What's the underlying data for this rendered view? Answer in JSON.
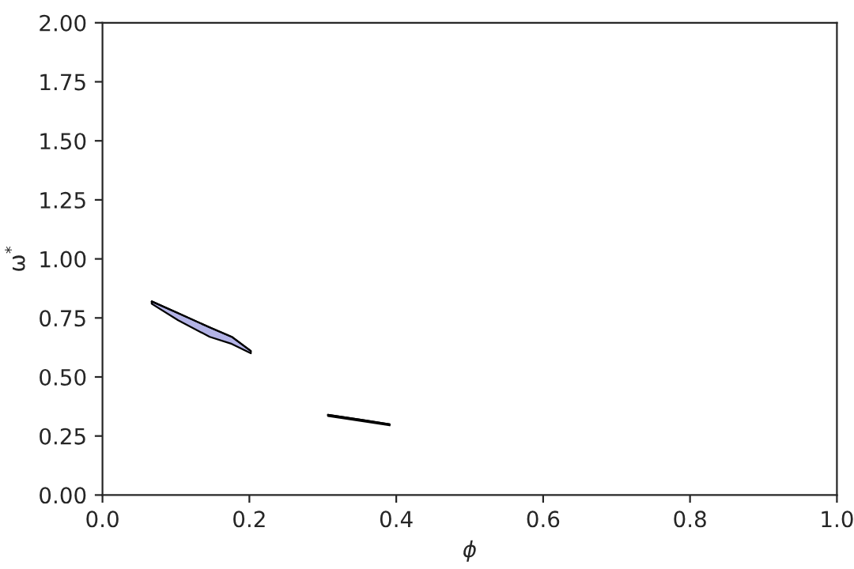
{
  "chart_data": {
    "type": "line",
    "xlabel": "ϕ",
    "ylabel": "ω$^{*}$",
    "xlim": [
      0,
      1
    ],
    "ylim": [
      0,
      2
    ],
    "xticks": [
      {
        "value": 0,
        "label": "0.0"
      },
      {
        "value": 0.2,
        "label": "0.2"
      },
      {
        "value": 0.4,
        "label": "0.4"
      },
      {
        "value": 0.6,
        "label": "0.6"
      },
      {
        "value": 0.8,
        "label": "0.8"
      },
      {
        "value": 1,
        "label": "1.0"
      }
    ],
    "yticks": [
      {
        "value": 0,
        "label": "0.00"
      },
      {
        "value": 0.25,
        "label": "0.25"
      },
      {
        "value": 0.5,
        "label": "0.50"
      },
      {
        "value": 0.75,
        "label": "0.75"
      },
      {
        "value": 1,
        "label": "1.00"
      },
      {
        "value": 1.25,
        "label": "1.25"
      },
      {
        "value": 1.5,
        "label": "1.50"
      },
      {
        "value": 1.75,
        "label": "1.75"
      },
      {
        "value": 2,
        "label": "2.00"
      }
    ],
    "grid": false,
    "legend": false,
    "series": [
      {
        "color": "#000000",
        "x": [
          0.067,
          0.103,
          0.146,
          0.176,
          0.202
        ],
        "values": [
          0.82,
          0.77,
          0.71,
          0.67,
          0.61
        ],
        "upper": [
          0.82,
          0.77,
          0.71,
          0.67,
          0.61
        ],
        "lower": [
          0.81,
          0.74,
          0.67,
          0.64,
          0.6
        ]
      },
      {
        "color": "#000000",
        "x": [
          0.307,
          0.35,
          0.391
        ],
        "values": [
          0.34,
          0.32,
          0.3
        ],
        "upper": [
          0.34,
          0.32,
          0.3
        ],
        "lower": [
          0.335,
          0.315,
          0.295
        ]
      }
    ]
  }
}
